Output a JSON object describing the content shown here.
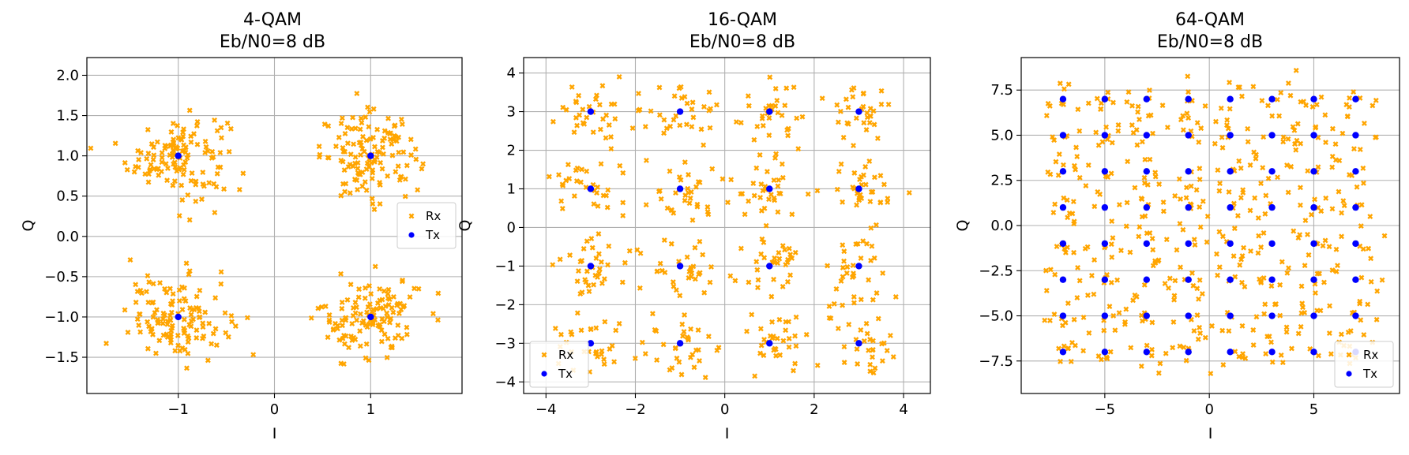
{
  "chart_data": [
    {
      "type": "scatter",
      "title": "4-QAM",
      "subtitle": "Eb/N0=8 dB",
      "xlabel": "I",
      "ylabel": "Q",
      "xlim": [
        -1.95,
        1.95
      ],
      "ylim": [
        -1.95,
        2.22
      ],
      "xticks": [
        -1,
        0,
        1
      ],
      "xtick_labels": [
        "−1",
        "0",
        "1"
      ],
      "yticks": [
        -1.5,
        -1.0,
        -0.5,
        0.0,
        0.5,
        1.0,
        1.5,
        2.0
      ],
      "ytick_labels": [
        "−1.5",
        "−1.0",
        "−0.5",
        "0.0",
        "0.5",
        "1.0",
        "1.5",
        "2.0"
      ],
      "grid": true,
      "legend": {
        "location": "center-right",
        "entries": [
          "Rx",
          "Tx"
        ]
      },
      "noise_sigma": 0.26,
      "series": [
        {
          "name": "Rx",
          "marker": "x",
          "color": "#FFA500",
          "per_symbol": 130
        },
        {
          "name": "Tx",
          "marker": "o",
          "color": "#0000FF",
          "points": [
            [
              -1,
              1
            ],
            [
              1,
              1
            ],
            [
              -1,
              -1
            ],
            [
              1,
              -1
            ]
          ]
        }
      ]
    },
    {
      "type": "scatter",
      "title": "16-QAM",
      "subtitle": "Eb/N0=8 dB",
      "xlabel": "I",
      "ylabel": "Q",
      "xlim": [
        -4.5,
        4.6
      ],
      "ylim": [
        -4.3,
        4.4
      ],
      "xticks": [
        -4,
        -2,
        0,
        2,
        4
      ],
      "xtick_labels": [
        "−4",
        "−2",
        "0",
        "2",
        "4"
      ],
      "yticks": [
        -4,
        -3,
        -2,
        -1,
        0,
        1,
        2,
        3,
        4
      ],
      "ytick_labels": [
        "−4",
        "−3",
        "−2",
        "−1",
        "0",
        "1",
        "2",
        "3",
        "4"
      ],
      "grid": true,
      "legend": {
        "location": "lower-left",
        "entries": [
          "Rx",
          "Tx"
        ]
      },
      "noise_sigma": 0.42,
      "series": [
        {
          "name": "Rx",
          "marker": "x",
          "color": "#FFA500",
          "per_symbol": 33
        },
        {
          "name": "Tx",
          "marker": "o",
          "color": "#0000FF",
          "points": [
            [
              -3,
              3
            ],
            [
              -1,
              3
            ],
            [
              1,
              3
            ],
            [
              3,
              3
            ],
            [
              -3,
              1
            ],
            [
              -1,
              1
            ],
            [
              1,
              1
            ],
            [
              3,
              1
            ],
            [
              -3,
              -1
            ],
            [
              -1,
              -1
            ],
            [
              1,
              -1
            ],
            [
              3,
              -1
            ],
            [
              -3,
              -3
            ],
            [
              -1,
              -3
            ],
            [
              1,
              -3
            ],
            [
              3,
              -3
            ]
          ]
        }
      ]
    },
    {
      "type": "scatter",
      "title": "64-QAM",
      "subtitle": "Eb/N0=8 dB",
      "xlabel": "I",
      "ylabel": "Q",
      "xlim": [
        -9.0,
        9.1
      ],
      "ylim": [
        -9.3,
        9.3
      ],
      "xticks": [
        -5,
        0,
        5
      ],
      "xtick_labels": [
        "−5",
        "0",
        "5"
      ],
      "yticks": [
        -7.5,
        -5.0,
        -2.5,
        0.0,
        2.5,
        5.0,
        7.5
      ],
      "ytick_labels": [
        "−7.5",
        "−5.0",
        "−2.5",
        "0.0",
        "2.5",
        "5.0",
        "7.5"
      ],
      "grid": true,
      "legend": {
        "location": "lower-right",
        "entries": [
          "Rx",
          "Tx"
        ]
      },
      "noise_sigma": 0.62,
      "series": [
        {
          "name": "Rx",
          "marker": "x",
          "color": "#FFA500",
          "per_symbol": 8
        },
        {
          "name": "Tx",
          "marker": "o",
          "color": "#0000FF",
          "points": [
            [
              -7,
              7
            ],
            [
              -5,
              7
            ],
            [
              -3,
              7
            ],
            [
              -1,
              7
            ],
            [
              1,
              7
            ],
            [
              3,
              7
            ],
            [
              5,
              7
            ],
            [
              7,
              7
            ],
            [
              -7,
              5
            ],
            [
              -5,
              5
            ],
            [
              -3,
              5
            ],
            [
              -1,
              5
            ],
            [
              1,
              5
            ],
            [
              3,
              5
            ],
            [
              5,
              5
            ],
            [
              7,
              5
            ],
            [
              -7,
              3
            ],
            [
              -5,
              3
            ],
            [
              -3,
              3
            ],
            [
              -1,
              3
            ],
            [
              1,
              3
            ],
            [
              3,
              3
            ],
            [
              5,
              3
            ],
            [
              7,
              3
            ],
            [
              -7,
              1
            ],
            [
              -5,
              1
            ],
            [
              -3,
              1
            ],
            [
              -1,
              1
            ],
            [
              1,
              1
            ],
            [
              3,
              1
            ],
            [
              5,
              1
            ],
            [
              7,
              1
            ],
            [
              -7,
              -1
            ],
            [
              -5,
              -1
            ],
            [
              -3,
              -1
            ],
            [
              -1,
              -1
            ],
            [
              1,
              -1
            ],
            [
              3,
              -1
            ],
            [
              5,
              -1
            ],
            [
              7,
              -1
            ],
            [
              -7,
              -3
            ],
            [
              -5,
              -3
            ],
            [
              -3,
              -3
            ],
            [
              -1,
              -3
            ],
            [
              1,
              -3
            ],
            [
              3,
              -3
            ],
            [
              5,
              -3
            ],
            [
              7,
              -3
            ],
            [
              -7,
              -5
            ],
            [
              -5,
              -5
            ],
            [
              -3,
              -5
            ],
            [
              -1,
              -5
            ],
            [
              1,
              -5
            ],
            [
              3,
              -5
            ],
            [
              5,
              -5
            ],
            [
              7,
              -5
            ],
            [
              -7,
              -7
            ],
            [
              -5,
              -7
            ],
            [
              -3,
              -7
            ],
            [
              -1,
              -7
            ],
            [
              1,
              -7
            ],
            [
              3,
              -7
            ],
            [
              5,
              -7
            ],
            [
              7,
              -7
            ]
          ]
        }
      ]
    }
  ]
}
